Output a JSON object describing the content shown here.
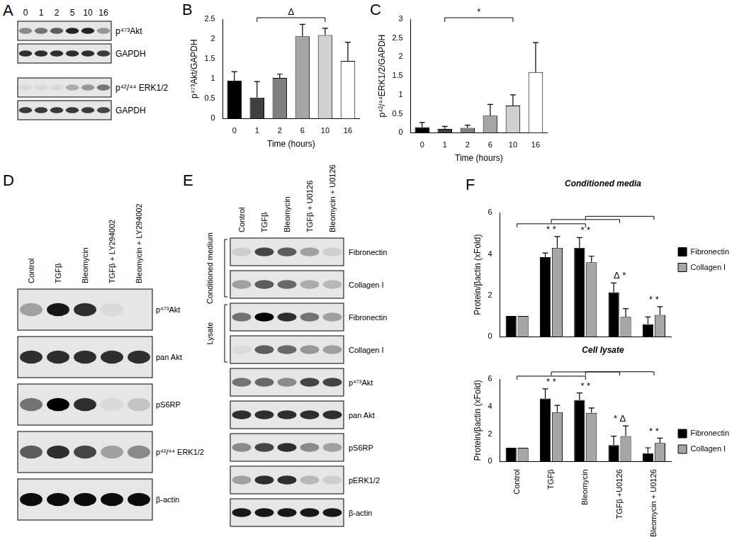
{
  "chart_data": [
    {
      "type": "bar",
      "panel": "B",
      "categories": [
        "0",
        "1",
        "2",
        "6",
        "10",
        "16"
      ],
      "values": [
        0.95,
        0.53,
        1.02,
        2.07,
        2.1,
        1.45
      ],
      "errors": [
        0.23,
        0.4,
        0.1,
        0.3,
        0.17,
        0.47
      ],
      "colors": [
        "#000000",
        "#404040",
        "#808080",
        "#a6a6a6",
        "#d0d0d0",
        "#ffffff"
      ],
      "xlabel": "Time (hours)",
      "ylabel": "p⁴⁷³Akt/GAPDH",
      "ylim": [
        0,
        2.5
      ],
      "yticks": [
        0,
        0.5,
        1,
        1.5,
        2,
        2.5
      ],
      "grid": false,
      "annotations": [
        {
          "text": "Δ",
          "from": "1",
          "to": "10"
        }
      ]
    },
    {
      "type": "bar",
      "panel": "C",
      "categories": [
        "0",
        "1",
        "2",
        "6",
        "10",
        "16"
      ],
      "values": [
        0.15,
        0.1,
        0.13,
        0.45,
        0.72,
        1.6
      ],
      "errors": [
        0.12,
        0.07,
        0.07,
        0.3,
        0.28,
        0.78
      ],
      "colors": [
        "#000000",
        "#404040",
        "#808080",
        "#a6a6a6",
        "#d0d0d0",
        "#ffffff"
      ],
      "xlabel": "Time (hours)",
      "ylabel": "p⁴²/⁴⁴ERK1/2/GAPDH",
      "ylim": [
        0,
        3
      ],
      "yticks": [
        0,
        0.5,
        1,
        1.5,
        2,
        2.5,
        3
      ],
      "grid": false,
      "annotations": [
        {
          "text": "*",
          "from": "1",
          "to": "10"
        }
      ]
    },
    {
      "type": "bar",
      "panel": "F",
      "subtitle": "Conditioned media",
      "categories": [
        "Control",
        "TGFβ",
        "Bleomycin",
        "TGFβ +U0126",
        "Bleomycin + U0126"
      ],
      "series": [
        {
          "name": "Fibronectin",
          "color": "#000000",
          "values": [
            1,
            3.85,
            4.3,
            2.15,
            0.6
          ],
          "errors": [
            0,
            0.2,
            0.5,
            0.45,
            0.35
          ]
        },
        {
          "name": "Collagen I",
          "color": "#a6a6a6",
          "values": [
            1,
            4.3,
            3.6,
            0.95,
            1.05
          ],
          "errors": [
            0,
            0.55,
            0.3,
            0.4,
            0.4
          ]
        }
      ],
      "ylabel": "Protein/βactin (xFold)",
      "ylim": [
        0,
        6
      ],
      "yticks": [
        0,
        2,
        4,
        6
      ],
      "grid": false,
      "legend": "right",
      "tick_labels": "y",
      "annotations": [
        {
          "text": "* *",
          "category": "TGFβ"
        },
        {
          "text": "* *",
          "category": "Bleomycin"
        },
        {
          "text": "Δ *",
          "category": "TGFβ +U0126"
        },
        {
          "text": "* *",
          "category": "Bleomycin + U0126"
        }
      ],
      "brackets": [
        {
          "from": "Control",
          "to": "Bleomycin"
        },
        {
          "from": "TGFβ",
          "to": "TGFβ +U0126"
        },
        {
          "from": "Bleomycin",
          "to": "Bleomycin + U0126"
        }
      ]
    },
    {
      "type": "bar",
      "subtitle": "Cell lysate",
      "categories": [
        "Control",
        "TGFβ",
        "Bleomycin",
        "TGFβ +U0126",
        "Bleomycin + U0126"
      ],
      "series": [
        {
          "name": "Fibronectin",
          "color": "#000000",
          "values": [
            1,
            4.6,
            4.5,
            1.2,
            0.6
          ],
          "errors": [
            0,
            0.7,
            0.5,
            0.65,
            0.4
          ]
        },
        {
          "name": "Collagen I",
          "color": "#a6a6a6",
          "values": [
            1,
            3.6,
            3.55,
            1.85,
            1.35
          ],
          "errors": [
            0,
            0.5,
            0.35,
            0.75,
            0.35
          ]
        }
      ],
      "ylabel": "Protein/βactin (xFold)",
      "ylim": [
        0,
        6
      ],
      "yticks": [
        0,
        2,
        4,
        6
      ],
      "grid": false,
      "legend": "right",
      "annotations": [
        {
          "text": "* *",
          "category": "TGFβ"
        },
        {
          "text": "* *",
          "category": "Bleomycin"
        },
        {
          "text": "* Δ",
          "category": "TGFβ +U0126"
        },
        {
          "text": "* *",
          "category": "Bleomycin + U0126"
        }
      ],
      "brackets": [
        {
          "from": "Control",
          "to": "Bleomycin"
        },
        {
          "from": "TGFβ",
          "to": "TGFβ +U0126"
        },
        {
          "from": "Bleomycin",
          "to": "Bleomycin + U0126"
        }
      ]
    }
  ],
  "blots": [
    {
      "panel": "A",
      "lanes": [
        "0",
        "1",
        "2",
        "5",
        "10",
        "16"
      ],
      "rows": [
        {
          "label": "p⁴⁷³Akt",
          "bands": [
            0.4,
            0.5,
            0.6,
            0.85,
            0.85,
            0.35
          ]
        },
        {
          "label": "GAPDH",
          "bands": [
            0.8,
            0.8,
            0.8,
            0.8,
            0.8,
            0.75
          ]
        },
        {
          "label": "p⁴²/⁴⁴ ERK1/2",
          "bands": [
            0.05,
            0.05,
            0.05,
            0.25,
            0.35,
            0.5
          ]
        },
        {
          "label": "GAPDH",
          "bands": [
            0.75,
            0.75,
            0.75,
            0.75,
            0.75,
            0.7
          ]
        }
      ]
    },
    {
      "panel": "D",
      "lanes": [
        "Control",
        "TGFβ",
        "Bleomycin",
        "TGFβ + LY294002",
        "Bleomycin + LY294002"
      ],
      "rows": [
        {
          "label": "p⁴⁷³Akt",
          "bands": [
            0.3,
            0.9,
            0.8,
            0.05,
            0
          ]
        },
        {
          "label": "pan Akt",
          "bands": [
            0.8,
            0.8,
            0.8,
            0.8,
            0.8
          ]
        },
        {
          "label": "pS6RP",
          "bands": [
            0.5,
            1,
            0.8,
            0.05,
            0.15
          ]
        },
        {
          "label": "p⁴²/⁴⁴ ERK1/2",
          "bands": [
            0.6,
            0.8,
            0.7,
            0.3,
            0.4
          ]
        },
        {
          "label": "β-actin",
          "bands": [
            0.95,
            0.95,
            0.95,
            0.95,
            0.95
          ]
        }
      ]
    },
    {
      "panel": "E",
      "lanes": [
        "Control",
        "TGFβ",
        "Bleomycin",
        "TGFβ + U0126",
        "Bleomycin + U0126"
      ],
      "rows": [
        {
          "label": "Fibronectin",
          "group": "Conditioned medium",
          "bands": [
            0.1,
            0.7,
            0.6,
            0.3,
            0.1
          ]
        },
        {
          "label": "Collagen I",
          "group": "Conditioned medium",
          "bands": [
            0.3,
            0.6,
            0.55,
            0.25,
            0.2
          ]
        },
        {
          "label": "Fibronectin",
          "group": "Lysate",
          "bands": [
            0.5,
            1,
            0.8,
            0.5,
            0.3
          ]
        },
        {
          "label": "Collagen I",
          "group": "Lysate",
          "bands": [
            0.05,
            0.6,
            0.55,
            0.35,
            0.3
          ]
        },
        {
          "label": "p⁴⁷³Akt",
          "bands": [
            0.5,
            0.55,
            0.4,
            0.7,
            0.7
          ]
        },
        {
          "label": "pan Akt",
          "bands": [
            0.8,
            0.8,
            0.8,
            0.8,
            0.8
          ]
        },
        {
          "label": "pS6RP",
          "bands": [
            0.4,
            0.7,
            0.8,
            0.4,
            0.3
          ]
        },
        {
          "label": "pERK1/2",
          "bands": [
            0.3,
            0.8,
            0.8,
            0.2,
            0.1
          ]
        },
        {
          "label": "β-actin",
          "bands": [
            0.9,
            0.9,
            0.9,
            0.9,
            0.9
          ]
        }
      ]
    }
  ]
}
